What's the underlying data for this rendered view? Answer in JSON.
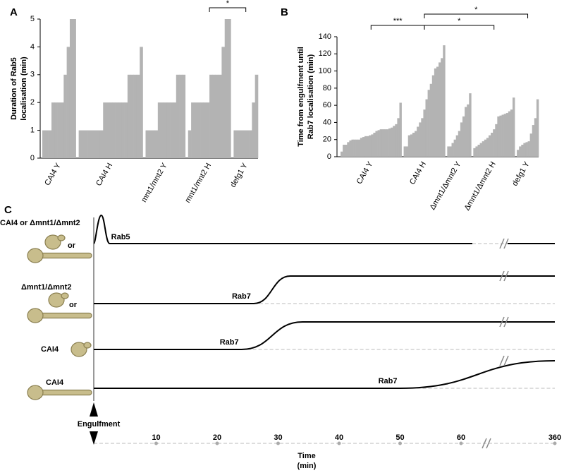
{
  "chart_data": [
    {
      "type": "bar-groups",
      "panel": "A",
      "ylabel": [
        "Duration of Rab5",
        "localisation (min)"
      ],
      "ylim": [
        0,
        5
      ],
      "yticks": [
        0,
        1,
        2,
        3,
        4,
        5
      ],
      "color": "#b3b3b3",
      "groups": [
        {
          "name": "CAI4 Y",
          "values": [
            1,
            1,
            1,
            2,
            2,
            2,
            2,
            3,
            4,
            5,
            5
          ]
        },
        {
          "name": "CAI4 H",
          "values": [
            1,
            1,
            1,
            1,
            1,
            1,
            1,
            1,
            2,
            2,
            2,
            2,
            2,
            2,
            2,
            2,
            3,
            3,
            3,
            3,
            4
          ]
        },
        {
          "name": "mnt1/mnt2 Y",
          "values": [
            1,
            1,
            1,
            1,
            2,
            2,
            2,
            2,
            2,
            2,
            3,
            3,
            3
          ]
        },
        {
          "name": "mnt1/mnt2 H",
          "values": [
            1,
            2,
            2,
            2,
            2,
            2,
            2,
            3,
            3,
            3,
            3,
            4,
            5,
            5
          ]
        },
        {
          "name": "defg1 Y",
          "values": [
            1,
            1,
            1,
            1,
            1,
            1,
            2,
            3
          ]
        }
      ],
      "brackets": [
        {
          "label": "*",
          "span": [
            3,
            4
          ]
        }
      ]
    },
    {
      "type": "bar-groups",
      "panel": "B",
      "ylabel": [
        "Time from engulfment until",
        "Rab7 localisation (min)"
      ],
      "ylim": [
        0,
        140
      ],
      "yticks": [
        0,
        20,
        40,
        60,
        80,
        100,
        120,
        140
      ],
      "color": "#b3b3b3",
      "groups": [
        {
          "name": "CAI4 Y",
          "values": [
            6,
            14,
            14,
            17,
            19,
            20,
            20,
            20,
            20,
            22,
            23,
            24,
            24,
            25,
            26,
            28,
            30,
            31,
            32,
            32,
            32,
            32,
            33,
            34,
            36,
            38,
            45,
            63
          ]
        },
        {
          "name": "CAI4 H",
          "values": [
            12,
            12,
            25,
            26,
            28,
            30,
            35,
            40,
            45,
            55,
            67,
            78,
            85,
            95,
            103,
            105,
            110,
            115,
            130
          ]
        },
        {
          "name": "Δmnt1/Δmnt2 Y",
          "values": [
            12,
            12,
            16,
            20,
            25,
            30,
            40,
            47,
            58,
            61,
            74
          ]
        },
        {
          "name": "Δmnt1/Δmnt2 H",
          "values": [
            10,
            12,
            14,
            16,
            18,
            20,
            22,
            25,
            28,
            32,
            38,
            47,
            48,
            49,
            50,
            51,
            53,
            55,
            69
          ]
        },
        {
          "name": "defg1 Y",
          "values": [
            8,
            12,
            14,
            16,
            17,
            18,
            27,
            37,
            45,
            67
          ]
        }
      ],
      "brackets": [
        {
          "label": "***",
          "span": [
            0,
            1
          ]
        },
        {
          "label": "*",
          "span": [
            1,
            3
          ]
        },
        {
          "label": "*",
          "span": [
            1,
            4
          ]
        }
      ]
    },
    {
      "type": "timeline",
      "panel": "C",
      "origin_label": "Engulfment",
      "xlabel": [
        "Time",
        "(min)"
      ],
      "xticks": [
        10,
        20,
        30,
        40,
        50,
        60,
        360
      ],
      "axis_break": true,
      "rows": [
        {
          "strain": "CAI4 or Δmnt1/Δmnt2",
          "connector": "or",
          "marker": "Rab5",
          "kind": "peak",
          "time": 1
        },
        {
          "strain": "Δmnt1/Δmnt2",
          "connector": "or",
          "marker": "Rab7",
          "kind": "rise",
          "rise": [
            26,
            32
          ]
        },
        {
          "strain": "CAI4",
          "marker": "Rab7",
          "kind": "rise",
          "rise": [
            24,
            34
          ]
        },
        {
          "strain": "CAI4",
          "marker": "Rab7",
          "kind": "rise",
          "rise": [
            50,
            61
          ]
        }
      ]
    }
  ]
}
